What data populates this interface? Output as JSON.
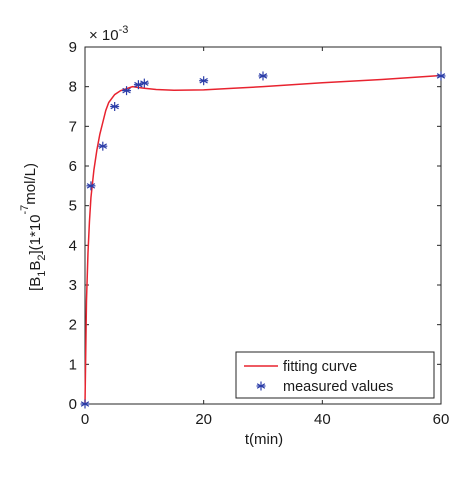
{
  "chart_data": {
    "type": "line",
    "title": "",
    "xlabel": "t(min)",
    "ylabel": {
      "parts": [
        {
          "t": "[B",
          "k": "n"
        },
        {
          "t": "1",
          "k": "sub"
        },
        {
          "t": "B",
          "k": "n"
        },
        {
          "t": "2",
          "k": "sub"
        },
        {
          "t": "](1*10",
          "k": "n"
        },
        {
          "t": "-7",
          "k": "sup"
        },
        {
          "t": "mol/L)",
          "k": "n"
        }
      ]
    },
    "xlim": [
      0,
      60
    ],
    "ylim": [
      0,
      0.009
    ],
    "xticks": [
      0,
      20,
      40,
      60
    ],
    "yticks": [
      0,
      0.001,
      0.002,
      0.003,
      0.004,
      0.005,
      0.006,
      0.007,
      0.008,
      0.009
    ],
    "ytick_labels": [
      "0",
      "1",
      "2",
      "3",
      "4",
      "5",
      "6",
      "7",
      "8",
      "9"
    ],
    "y_multiplier": {
      "base": "× 10",
      "exponent": "-3"
    },
    "grid": false,
    "legend": {
      "position": "bottom-right",
      "entries": [
        "fitting curve",
        "measured values"
      ]
    },
    "series": [
      {
        "name": "fitting curve",
        "kind": "line",
        "color": "#e8232f",
        "x": [
          0,
          0.25,
          0.5,
          0.75,
          1,
          1.5,
          2,
          2.5,
          3,
          3.5,
          4,
          5,
          6,
          7,
          8,
          9,
          10,
          12,
          15,
          20,
          25,
          30,
          40,
          50,
          60
        ],
        "y": [
          0,
          0.0026,
          0.0038,
          0.0046,
          0.0052,
          0.0059,
          0.0064,
          0.0068,
          0.0071,
          0.0074,
          0.0076,
          0.0078,
          0.0079,
          0.00795,
          0.008,
          0.00798,
          0.00796,
          0.00793,
          0.00791,
          0.00792,
          0.00796,
          0.008,
          0.0081,
          0.00818,
          0.00828
        ]
      },
      {
        "name": "measured values",
        "kind": "scatter",
        "color": "#2b3da8",
        "marker": "asterisk",
        "x": [
          0,
          1,
          3,
          5,
          7,
          9,
          10,
          20,
          30,
          60
        ],
        "y": [
          0,
          0.0055,
          0.0065,
          0.0075,
          0.0079,
          0.00805,
          0.00809,
          0.00815,
          0.00827,
          0.00827
        ]
      }
    ]
  }
}
